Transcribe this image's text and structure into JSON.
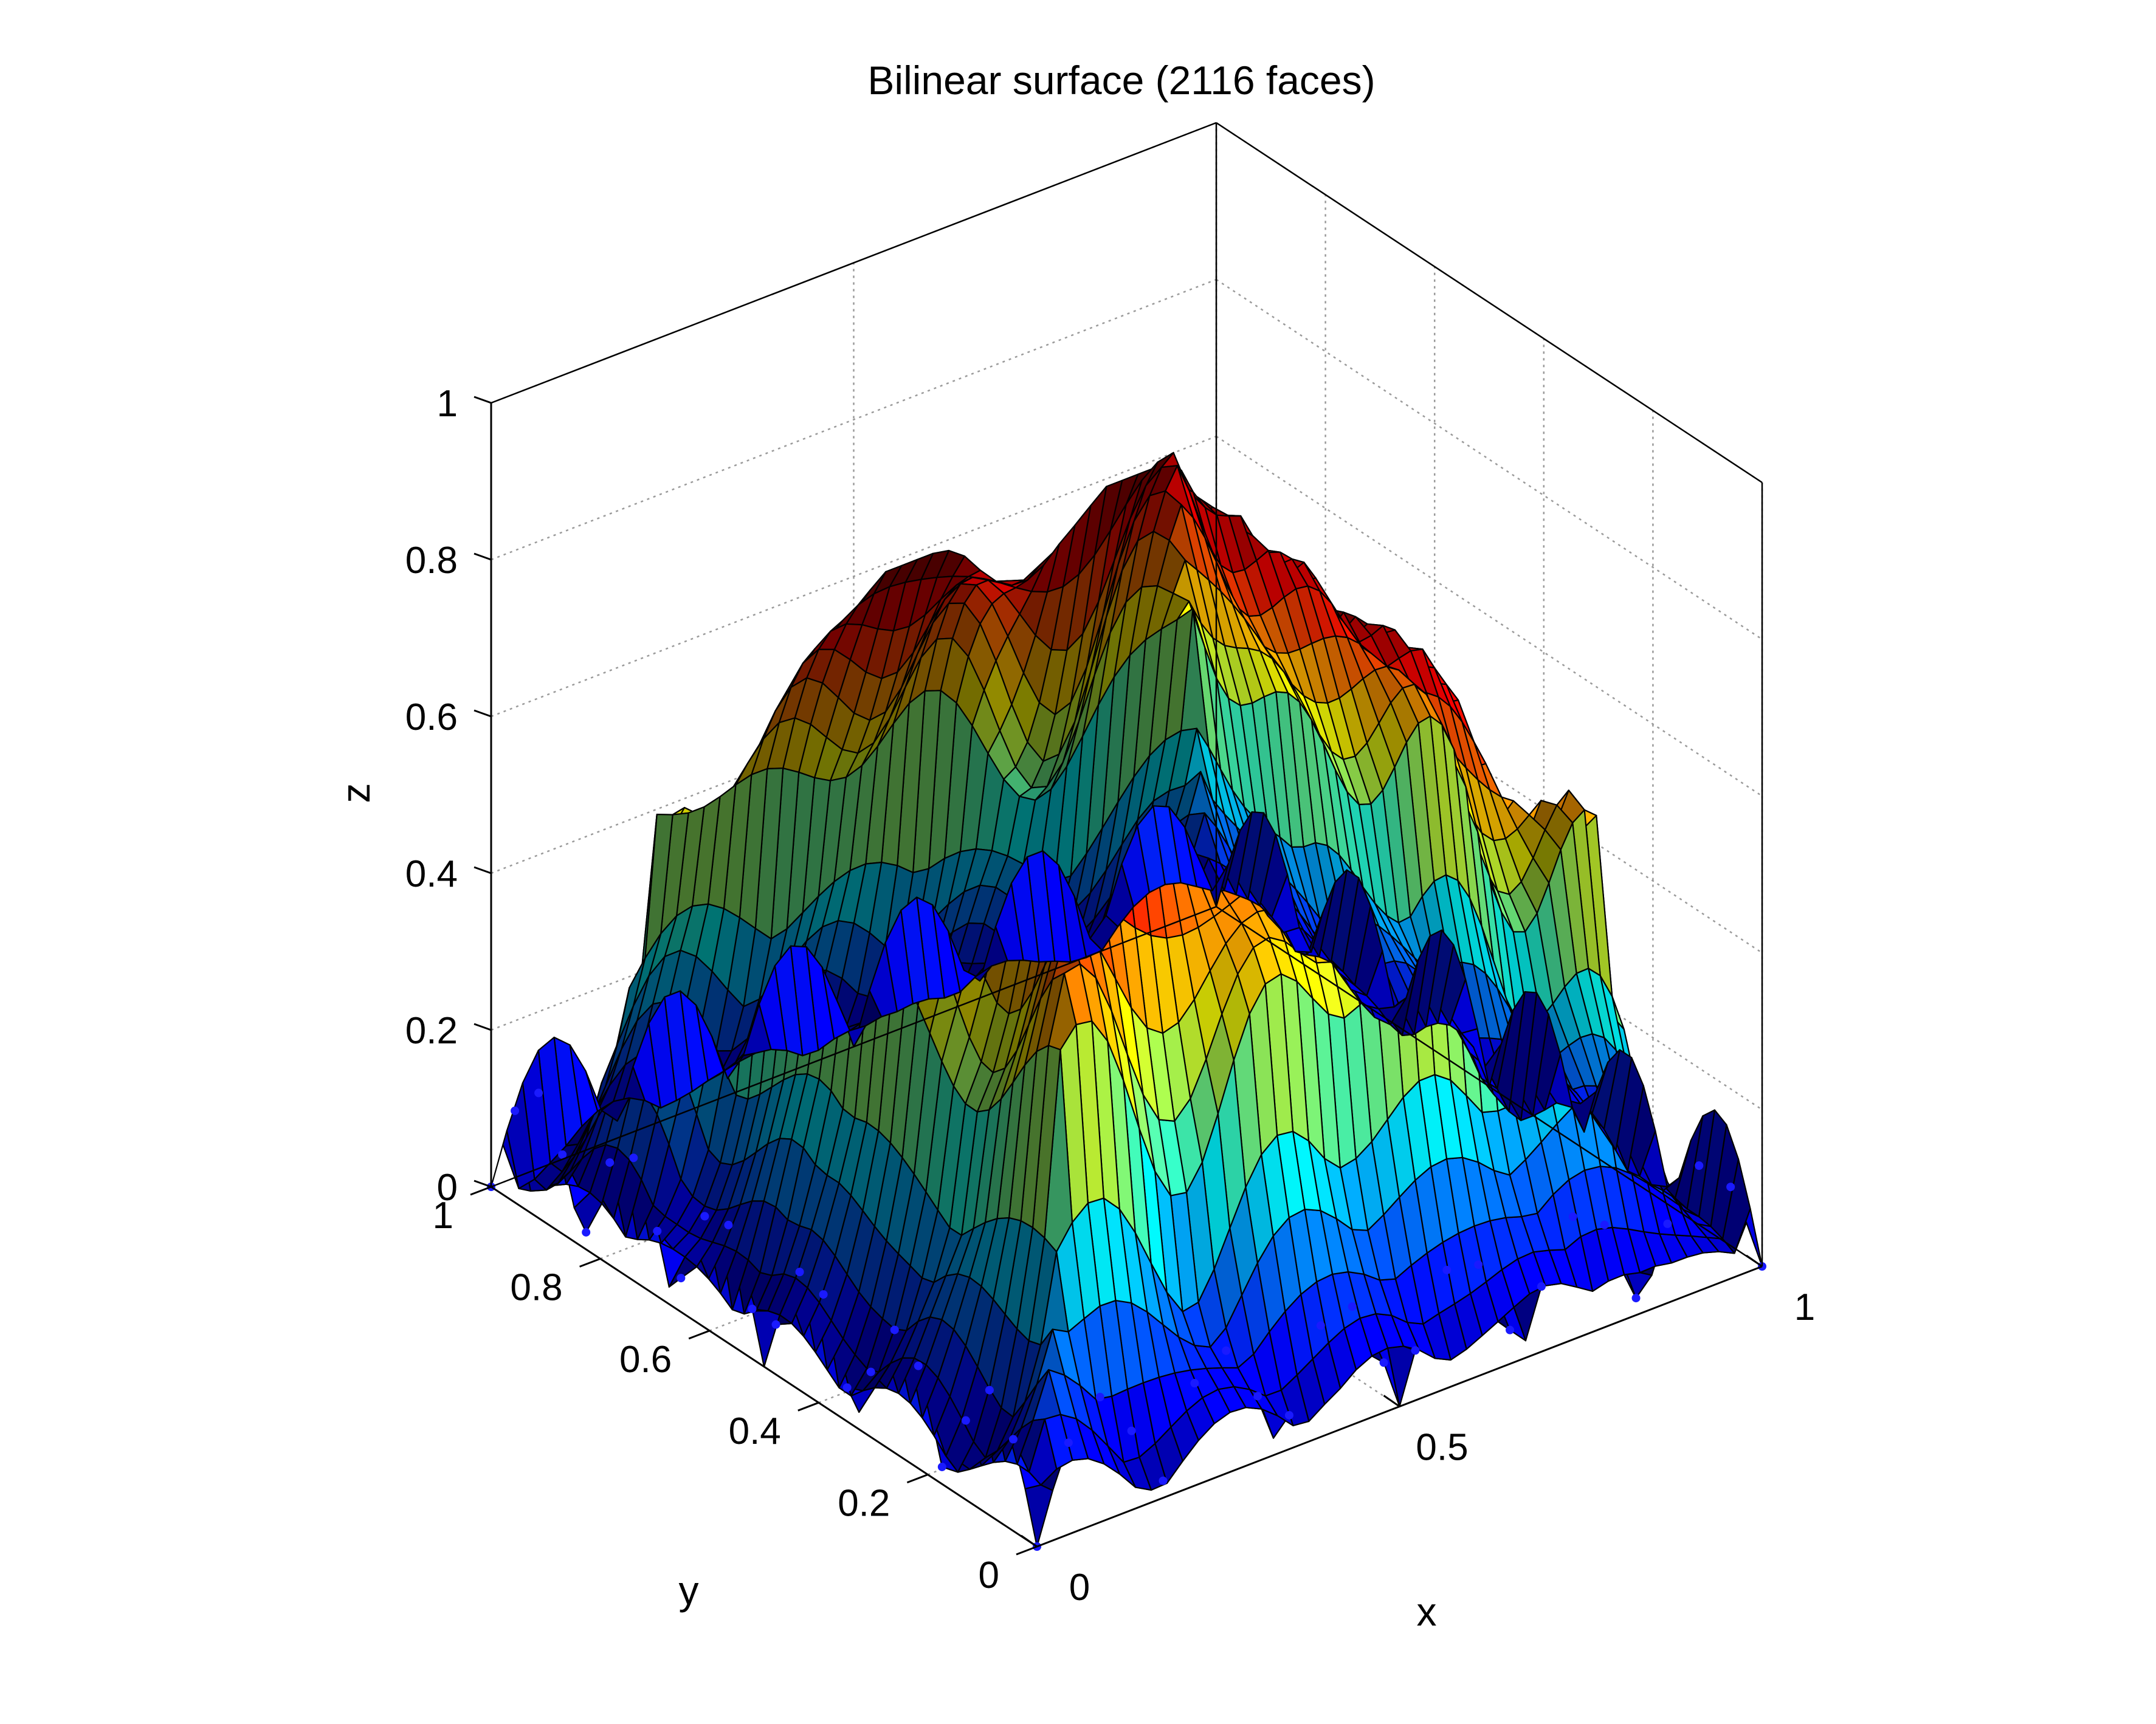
{
  "chart_data": {
    "type": "surface",
    "title": "Bilinear surface (2116 faces)",
    "xlabel": "x",
    "ylabel": "y",
    "zlabel": "z",
    "xlim": [
      0,
      1
    ],
    "ylim": [
      0,
      1
    ],
    "zlim": [
      0,
      1
    ],
    "x_ticks": [
      "0",
      "0.5",
      "1"
    ],
    "y_ticks": [
      "0",
      "0.2",
      "0.4",
      "0.6",
      "0.8",
      "1"
    ],
    "z_ticks": [
      "0",
      "0.2",
      "0.4",
      "0.6",
      "0.8",
      "1"
    ],
    "grid": true,
    "colormap": "jet",
    "edge_color": "#000000",
    "node_marker_color": "#1a1aff",
    "grid_size": [
      46,
      46
    ],
    "faces": 2116,
    "peak_value": 0.76
  }
}
